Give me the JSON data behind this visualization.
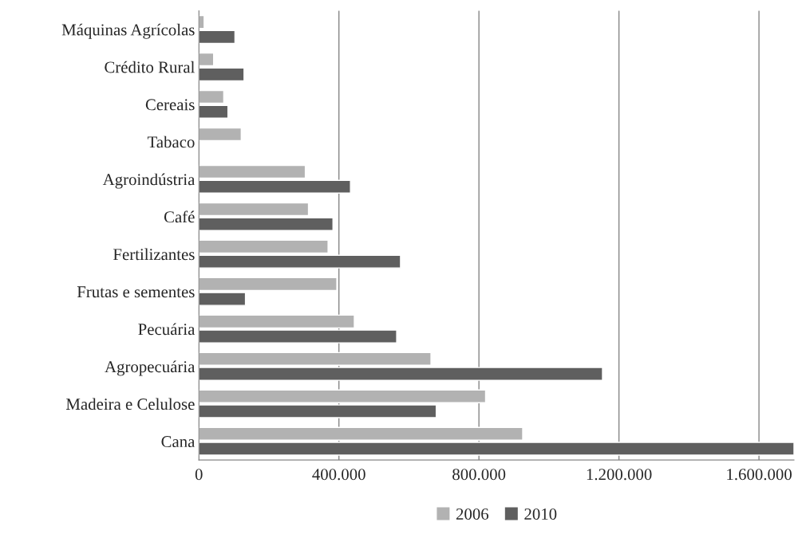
{
  "chart_data": {
    "type": "bar",
    "orientation": "horizontal",
    "categories": [
      "Máquinas Agrícolas",
      "Crédito Rural",
      "Cereais",
      "Tabaco",
      "Agroindústria",
      "Café",
      "Fertilizantes",
      "Frutas e sementes",
      "Pecuária",
      "Agropecuária",
      "Madeira e Celulose",
      "Cana"
    ],
    "series": [
      {
        "name": "2006",
        "color": "#b2b2b2",
        "values": [
          15000,
          42000,
          71000,
          121000,
          304000,
          313000,
          369000,
          394000,
          444000,
          663000,
          819000,
          925000
        ]
      },
      {
        "name": "2010",
        "color": "#5f5f5f",
        "values": [
          103000,
          129000,
          83000,
          null,
          433000,
          383000,
          576000,
          133000,
          565000,
          1153000,
          678000,
          1700000
        ]
      }
    ],
    "xlim": [
      0,
      1700000
    ],
    "xticks": [
      0,
      {
        "value": 400000,
        "label": "400.000"
      },
      {
        "value": 800000,
        "label": "800.000"
      },
      {
        "value": 1200000,
        "label": "1.200.000"
      },
      {
        "value": 1600000,
        "label": "1.600.000"
      }
    ],
    "grid": "x",
    "legend": "bottom"
  }
}
